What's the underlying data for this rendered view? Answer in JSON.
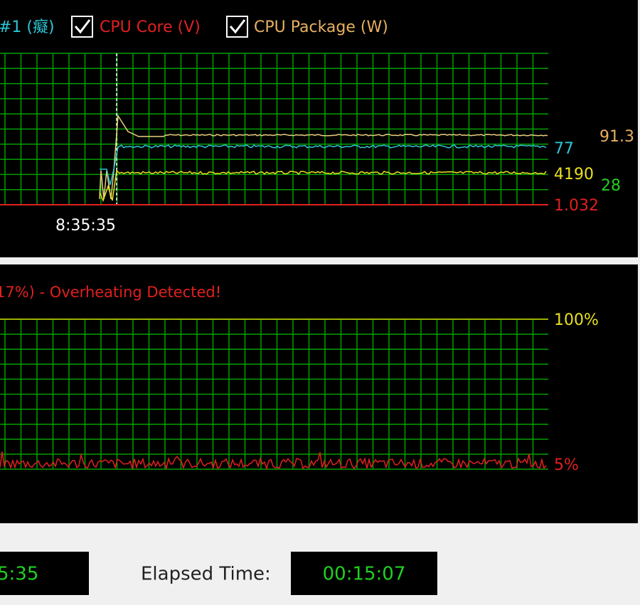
{
  "top_panel": {
    "legend": [
      {
        "label": "#1 (癡)"
      },
      {
        "label": "CPU Core (V)"
      },
      {
        "label": "CPU Package (W)"
      }
    ],
    "time_label": "8:35:35",
    "readings": [
      "91.3",
      "77",
      "4190",
      "28",
      "1.032"
    ]
  },
  "bottom_panel": {
    "status": "17%) - Overheating Detected!",
    "max_label": "100%",
    "current_label": "5%"
  },
  "footer": {
    "start_time": "5:35",
    "elapsed_label": "Elapsed Time:",
    "elapsed_time": "00:15:07"
  }
}
